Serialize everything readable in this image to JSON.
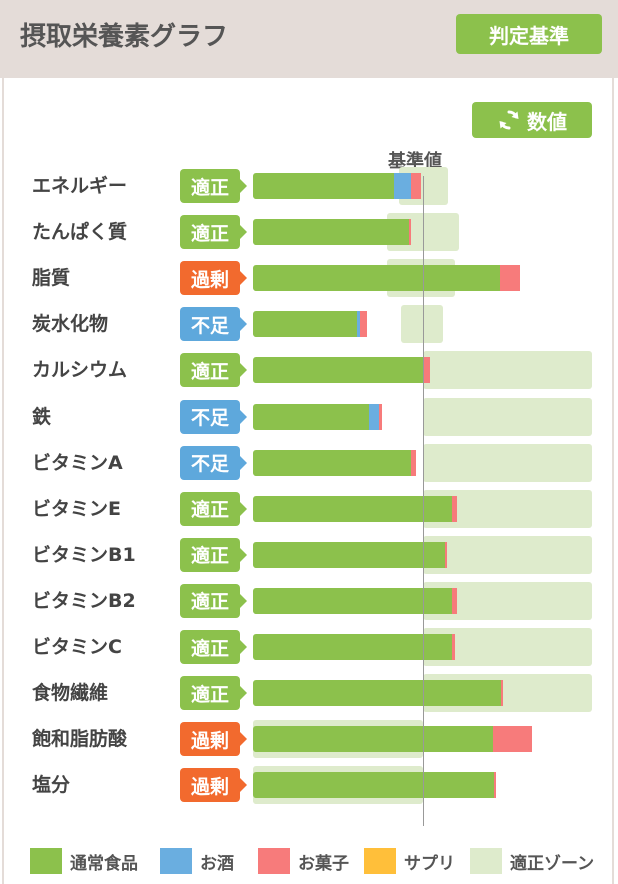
{
  "header": {
    "title": "摂取栄養素グラフ",
    "criteria_button": "判定基準"
  },
  "toolbar": {
    "values_button": "数値",
    "refresh_icon": "refresh-icon"
  },
  "colors": {
    "regular": "#8cc14c",
    "alcohol": "#6aaee0",
    "snack": "#f77b7b",
    "supplement": "#ffbf3a",
    "zone": "#deebcc",
    "status_ok": "#8cc14c",
    "status_over": "#f26a2e",
    "status_under": "#5ea8dc"
  },
  "chart_data": {
    "type": "bar",
    "orientation": "horizontal",
    "stacked": true,
    "reference_label": "基準値",
    "reference_value": 100,
    "categories": [
      "エネルギー",
      "たんぱく質",
      "脂質",
      "炭水化物",
      "カルシウム",
      "鉄",
      "ビタミンA",
      "ビタミンE",
      "ビタミンB1",
      "ビタミンB2",
      "ビタミンC",
      "食物繊維",
      "飽和脂肪酸",
      "塩分"
    ],
    "status": [
      "適正",
      "適正",
      "過剰",
      "不足",
      "適正",
      "不足",
      "不足",
      "適正",
      "適正",
      "適正",
      "適正",
      "適正",
      "過剰",
      "過剰"
    ],
    "status_kind": [
      "ok",
      "ok",
      "over",
      "under",
      "ok",
      "under",
      "under",
      "ok",
      "ok",
      "ok",
      "ok",
      "ok",
      "over",
      "over"
    ],
    "series": [
      {
        "name": "通常食品",
        "values": [
          83,
          92,
          145,
          61,
          100,
          68,
          93,
          117,
          113,
          117,
          117,
          146,
          141,
          142
        ]
      },
      {
        "name": "お酒",
        "values": [
          10,
          0,
          0,
          2,
          0,
          6,
          0,
          0,
          0,
          0,
          0,
          0,
          0,
          0
        ]
      },
      {
        "name": "お菓子",
        "values": [
          6,
          1,
          12,
          4,
          4,
          2,
          3,
          3,
          1,
          3,
          2,
          1,
          23,
          1
        ]
      },
      {
        "name": "サプリ",
        "values": [
          0,
          0,
          0,
          0,
          0,
          0,
          0,
          0,
          0,
          0,
          0,
          0,
          0,
          0
        ]
      }
    ],
    "zones": [
      [
        86,
        115
      ],
      [
        79,
        121
      ],
      [
        79,
        119
      ],
      [
        87,
        112
      ],
      [
        100,
        200
      ],
      [
        100,
        200
      ],
      [
        100,
        200
      ],
      [
        100,
        200
      ],
      [
        100,
        200
      ],
      [
        100,
        200
      ],
      [
        100,
        200
      ],
      [
        100,
        200
      ],
      [
        0,
        100
      ],
      [
        0,
        100
      ]
    ],
    "legend": [
      "通常食品",
      "お酒",
      "お菓子",
      "サプリ",
      "適正ゾーン"
    ]
  }
}
